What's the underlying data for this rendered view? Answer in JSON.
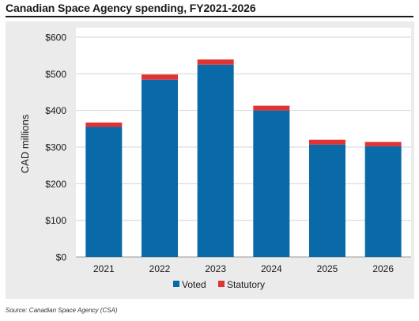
{
  "title": "Canadian Space Agency spending, FY2021-2026",
  "source": "Source: Canadian Space Agency (CSA)",
  "colors": {
    "voted": "#0a6aa8",
    "statutory": "#e03433",
    "panel": "#ebebeb",
    "plot": "#ffffff",
    "grid": "#d4d4d4"
  },
  "chart_data": {
    "type": "bar",
    "stacked": true,
    "categories": [
      "2021",
      "2022",
      "2023",
      "2024",
      "2025",
      "2026"
    ],
    "series": [
      {
        "name": "Voted",
        "values": [
          355,
          484,
          525,
          400,
          307,
          302
        ]
      },
      {
        "name": "Statutory",
        "values": [
          12,
          14,
          14,
          13,
          13,
          12
        ]
      }
    ],
    "ylabel": "CAD millions",
    "xlabel": "",
    "ylim": [
      0,
      600
    ],
    "yticks": [
      0,
      100,
      200,
      300,
      400,
      500,
      600
    ],
    "ytick_labels": [
      "$0",
      "$100",
      "$200",
      "$300",
      "$400",
      "$500",
      "$600"
    ],
    "grid": true,
    "legend_position": "bottom-center"
  }
}
